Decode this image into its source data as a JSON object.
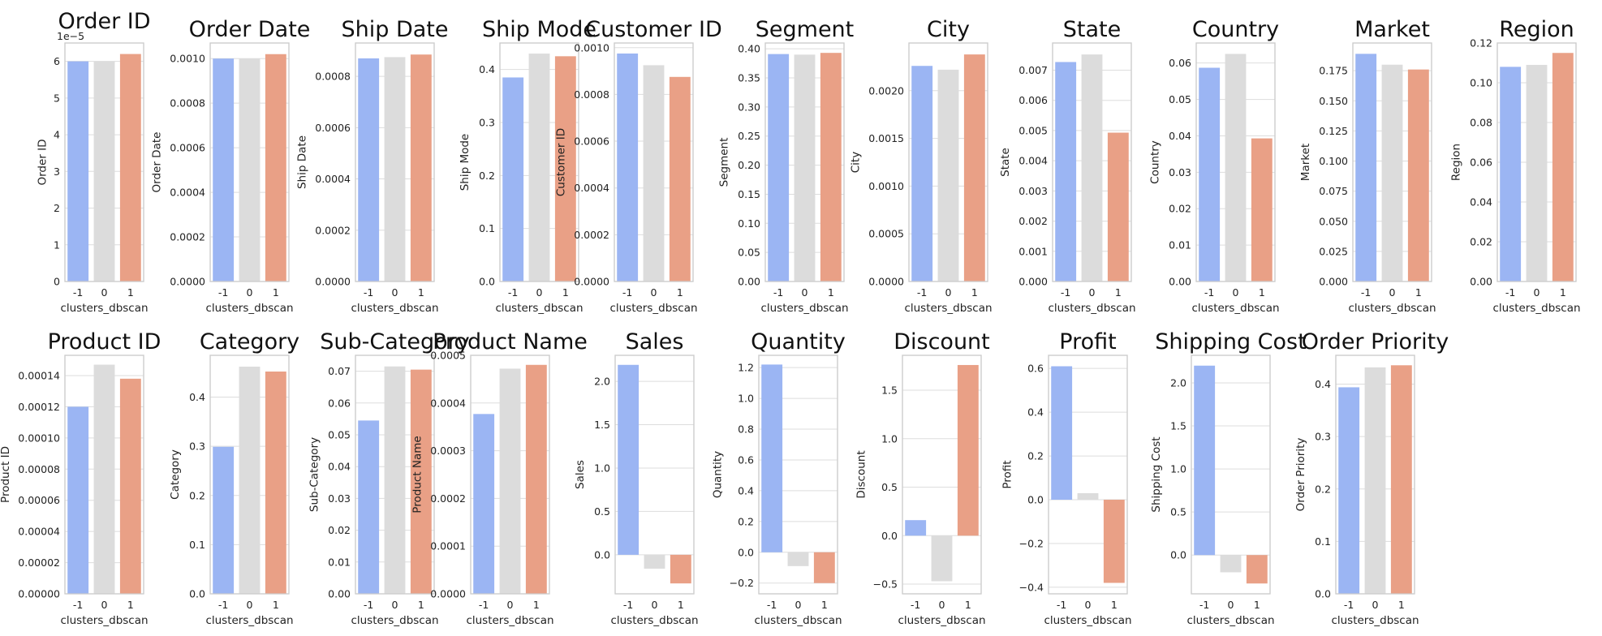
{
  "chart_data": [
    {
      "type": "bar",
      "title": "Order ID",
      "xlabel": "clusters_dbscan",
      "ylabel": "Order ID",
      "categories": [
        "-1",
        "0",
        "1"
      ],
      "values": [
        6e-05,
        6e-05,
        6.2e-05
      ],
      "ylim": [
        0,
        6.5e-05
      ],
      "yticks": [
        0,
        1e-05,
        2e-05,
        3e-05,
        4e-05,
        5e-05,
        6e-05
      ],
      "ytick_labels": [
        "0",
        "1",
        "2",
        "3",
        "4",
        "5",
        "6"
      ],
      "offset_text": "1e−5",
      "grid": true
    },
    {
      "type": "bar",
      "title": "Order Date",
      "xlabel": "clusters_dbscan",
      "ylabel": "Order Date",
      "categories": [
        "-1",
        "0",
        "1"
      ],
      "values": [
        0.001,
        0.001,
        0.00102
      ],
      "ylim": [
        0,
        0.00107
      ],
      "yticks": [
        0,
        0.0002,
        0.0004,
        0.0006,
        0.0008,
        0.001
      ],
      "ytick_labels": [
        "0.0000",
        "0.0002",
        "0.0004",
        "0.0006",
        "0.0008",
        "0.0010"
      ],
      "grid": true
    },
    {
      "type": "bar",
      "title": "Ship Date",
      "xlabel": "clusters_dbscan",
      "ylabel": "Ship Date",
      "categories": [
        "-1",
        "0",
        "1"
      ],
      "values": [
        0.00087,
        0.000875,
        0.000885
      ],
      "ylim": [
        0,
        0.00093
      ],
      "yticks": [
        0,
        0.0002,
        0.0004,
        0.0006,
        0.0008
      ],
      "ytick_labels": [
        "0.0000",
        "0.0002",
        "0.0004",
        "0.0006",
        "0.0008"
      ],
      "grid": true
    },
    {
      "type": "bar",
      "title": "Ship Mode",
      "xlabel": "clusters_dbscan",
      "ylabel": "Ship Mode",
      "categories": [
        "-1",
        "0",
        "1"
      ],
      "values": [
        0.385,
        0.43,
        0.425
      ],
      "ylim": [
        0,
        0.45
      ],
      "yticks": [
        0,
        0.1,
        0.2,
        0.3,
        0.4
      ],
      "ytick_labels": [
        "0.0",
        "0.1",
        "0.2",
        "0.3",
        "0.4"
      ],
      "grid": true
    },
    {
      "type": "bar",
      "title": "Customer ID",
      "xlabel": "clusters_dbscan",
      "ylabel": "Customer ID",
      "categories": [
        "-1",
        "0",
        "1"
      ],
      "values": [
        0.000975,
        0.000925,
        0.000875
      ],
      "ylim": [
        0,
        0.00102
      ],
      "yticks": [
        0,
        0.0002,
        0.0004,
        0.0006,
        0.0008,
        0.001
      ],
      "ytick_labels": [
        "0.0000",
        "0.0002",
        "0.0004",
        "0.0006",
        "0.0008",
        "0.0010"
      ],
      "grid": true
    },
    {
      "type": "bar",
      "title": "Segment",
      "xlabel": "clusters_dbscan",
      "ylabel": "Segment",
      "categories": [
        "-1",
        "0",
        "1"
      ],
      "values": [
        0.391,
        0.39,
        0.393
      ],
      "ylim": [
        0,
        0.41
      ],
      "yticks": [
        0,
        0.05,
        0.1,
        0.15,
        0.2,
        0.25,
        0.3,
        0.35,
        0.4
      ],
      "ytick_labels": [
        "0.00",
        "0.05",
        "0.10",
        "0.15",
        "0.20",
        "0.25",
        "0.30",
        "0.35",
        "0.40"
      ],
      "grid": true
    },
    {
      "type": "bar",
      "title": "City",
      "xlabel": "clusters_dbscan",
      "ylabel": "City",
      "categories": [
        "-1",
        "0",
        "1"
      ],
      "values": [
        0.00226,
        0.00222,
        0.00238
      ],
      "ylim": [
        0,
        0.0025
      ],
      "yticks": [
        0,
        0.0005,
        0.001,
        0.0015,
        0.002
      ],
      "ytick_labels": [
        "0.0000",
        "0.0005",
        "0.0010",
        "0.0015",
        "0.0020"
      ],
      "grid": true
    },
    {
      "type": "bar",
      "title": "State",
      "xlabel": "clusters_dbscan",
      "ylabel": "State",
      "categories": [
        "-1",
        "0",
        "1"
      ],
      "values": [
        0.00727,
        0.00752,
        0.00493
      ],
      "ylim": [
        0,
        0.0079
      ],
      "yticks": [
        0,
        0.001,
        0.002,
        0.003,
        0.004,
        0.005,
        0.006,
        0.007
      ],
      "ytick_labels": [
        "0.000",
        "0.001",
        "0.002",
        "0.003",
        "0.004",
        "0.005",
        "0.006",
        "0.007"
      ],
      "grid": true
    },
    {
      "type": "bar",
      "title": "Country",
      "xlabel": "clusters_dbscan",
      "ylabel": "Country",
      "categories": [
        "-1",
        "0",
        "1"
      ],
      "values": [
        0.0587,
        0.0625,
        0.0393
      ],
      "ylim": [
        0,
        0.0655
      ],
      "yticks": [
        0,
        0.01,
        0.02,
        0.03,
        0.04,
        0.05,
        0.06
      ],
      "ytick_labels": [
        "0.00",
        "0.01",
        "0.02",
        "0.03",
        "0.04",
        "0.05",
        "0.06"
      ],
      "grid": true
    },
    {
      "type": "bar",
      "title": "Market",
      "xlabel": "clusters_dbscan",
      "ylabel": "Market",
      "categories": [
        "-1",
        "0",
        "1"
      ],
      "values": [
        0.189,
        0.18,
        0.176
      ],
      "ylim": [
        0,
        0.198
      ],
      "yticks": [
        0,
        0.025,
        0.05,
        0.075,
        0.1,
        0.125,
        0.15,
        0.175
      ],
      "ytick_labels": [
        "0.000",
        "0.025",
        "0.050",
        "0.075",
        "0.100",
        "0.125",
        "0.150",
        "0.175"
      ],
      "grid": true
    },
    {
      "type": "bar",
      "title": "Region",
      "xlabel": "clusters_dbscan",
      "ylabel": "Region",
      "categories": [
        "-1",
        "0",
        "1"
      ],
      "values": [
        0.108,
        0.109,
        0.115
      ],
      "ylim": [
        0,
        0.12
      ],
      "yticks": [
        0,
        0.02,
        0.04,
        0.06,
        0.08,
        0.1,
        0.12
      ],
      "ytick_labels": [
        "0.00",
        "0.02",
        "0.04",
        "0.06",
        "0.08",
        "0.10",
        "0.12"
      ],
      "grid": true
    },
    {
      "type": "bar",
      "title": "Product ID",
      "xlabel": "clusters_dbscan",
      "ylabel": "Product ID",
      "categories": [
        "-1",
        "0",
        "1"
      ],
      "values": [
        0.00012,
        0.000147,
        0.000138
      ],
      "ylim": [
        0,
        0.000153
      ],
      "yticks": [
        0,
        2e-05,
        4e-05,
        6e-05,
        8e-05,
        0.0001,
        0.00012,
        0.00014
      ],
      "ytick_labels": [
        "0.00000",
        "0.00002",
        "0.00004",
        "0.00006",
        "0.00008",
        "0.00010",
        "0.00012",
        "0.00014"
      ],
      "grid": true
    },
    {
      "type": "bar",
      "title": "Category",
      "xlabel": "clusters_dbscan",
      "ylabel": "Category",
      "categories": [
        "-1",
        "0",
        "1"
      ],
      "values": [
        0.299,
        0.462,
        0.452
      ],
      "ylim": [
        0,
        0.485
      ],
      "yticks": [
        0,
        0.1,
        0.2,
        0.3,
        0.4
      ],
      "ytick_labels": [
        "0.0",
        "0.1",
        "0.2",
        "0.3",
        "0.4"
      ],
      "grid": true
    },
    {
      "type": "bar",
      "title": "Sub-Category",
      "xlabel": "clusters_dbscan",
      "ylabel": "Sub-Category",
      "categories": [
        "-1",
        "0",
        "1"
      ],
      "values": [
        0.0545,
        0.0715,
        0.0705
      ],
      "ylim": [
        0,
        0.075
      ],
      "yticks": [
        0,
        0.01,
        0.02,
        0.03,
        0.04,
        0.05,
        0.06,
        0.07
      ],
      "ytick_labels": [
        "0.00",
        "0.01",
        "0.02",
        "0.03",
        "0.04",
        "0.05",
        "0.06",
        "0.07"
      ],
      "grid": true
    },
    {
      "type": "bar",
      "title": "Product Name",
      "xlabel": "clusters_dbscan",
      "ylabel": "Product Name",
      "categories": [
        "-1",
        "0",
        "1"
      ],
      "values": [
        0.000377,
        0.000472,
        0.00048
      ],
      "ylim": [
        0,
        0.0005
      ],
      "yticks": [
        0,
        0.0001,
        0.0002,
        0.0003,
        0.0004,
        0.0005
      ],
      "ytick_labels": [
        "0.0000",
        "0.0001",
        "0.0002",
        "0.0003",
        "0.0004",
        "0.0005"
      ],
      "grid": true
    },
    {
      "type": "bar",
      "title": "Sales",
      "xlabel": "clusters_dbscan",
      "ylabel": "Sales",
      "categories": [
        "-1",
        "0",
        "1"
      ],
      "values": [
        2.19,
        -0.16,
        -0.33
      ],
      "ylim": [
        -0.45,
        2.3
      ],
      "yticks": [
        0,
        0.5,
        1,
        1.5,
        2
      ],
      "ytick_labels": [
        "0.0",
        "0.5",
        "1.0",
        "1.5",
        "2.0"
      ],
      "grid": true
    },
    {
      "type": "bar",
      "title": "Quantity",
      "xlabel": "clusters_dbscan",
      "ylabel": "Quantity",
      "categories": [
        "-1",
        "0",
        "1"
      ],
      "values": [
        1.22,
        -0.09,
        -0.2
      ],
      "ylim": [
        -0.27,
        1.28
      ],
      "yticks": [
        -0.2,
        0,
        0.2,
        0.4,
        0.6,
        0.8,
        1,
        1.2
      ],
      "ytick_labels": [
        "−0.2",
        "0.0",
        "0.2",
        "0.4",
        "0.6",
        "0.8",
        "1.0",
        "1.2"
      ],
      "grid": true
    },
    {
      "type": "bar",
      "title": "Discount",
      "xlabel": "clusters_dbscan",
      "ylabel": "Discount",
      "categories": [
        "-1",
        "0",
        "1"
      ],
      "values": [
        0.16,
        -0.47,
        1.76
      ],
      "ylim": [
        -0.6,
        1.86
      ],
      "yticks": [
        -0.5,
        0,
        0.5,
        1,
        1.5
      ],
      "ytick_labels": [
        "−0.5",
        "0.0",
        "0.5",
        "1.0",
        "1.5"
      ],
      "grid": true
    },
    {
      "type": "bar",
      "title": "Profit",
      "xlabel": "clusters_dbscan",
      "ylabel": "Profit",
      "categories": [
        "-1",
        "0",
        "1"
      ],
      "values": [
        0.61,
        0.03,
        -0.38
      ],
      "ylim": [
        -0.43,
        0.66
      ],
      "yticks": [
        -0.4,
        -0.2,
        0,
        0.2,
        0.4,
        0.6
      ],
      "ytick_labels": [
        "−0.4",
        "−0.2",
        "0.0",
        "0.2",
        "0.4",
        "0.6"
      ],
      "grid": true
    },
    {
      "type": "bar",
      "title": "Shipping Cost",
      "xlabel": "clusters_dbscan",
      "ylabel": "Shipping Cost",
      "categories": [
        "-1",
        "0",
        "1"
      ],
      "values": [
        2.2,
        -0.2,
        -0.33
      ],
      "ylim": [
        -0.45,
        2.32
      ],
      "yticks": [
        0,
        0.5,
        1,
        1.5,
        2
      ],
      "ytick_labels": [
        "0.0",
        "0.5",
        "1.0",
        "1.5",
        "2.0"
      ],
      "grid": true
    },
    {
      "type": "bar",
      "title": "Order Priority",
      "xlabel": "clusters_dbscan",
      "ylabel": "Order Priority",
      "categories": [
        "-1",
        "0",
        "1"
      ],
      "values": [
        0.394,
        0.432,
        0.436
      ],
      "ylim": [
        0,
        0.455
      ],
      "yticks": [
        0,
        0.1,
        0.2,
        0.3,
        0.4
      ],
      "ytick_labels": [
        "0.0",
        "0.1",
        "0.2",
        "0.3",
        "0.4"
      ],
      "grid": true
    }
  ],
  "colors": {
    "cluster_-1": "#9bb5f3",
    "cluster_0": "#dcdcdc",
    "cluster_1": "#e9a086"
  }
}
